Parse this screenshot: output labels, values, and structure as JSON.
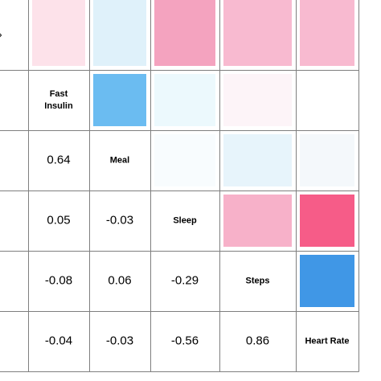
{
  "chart_data": {
    "type": "heatmap",
    "variables": [
      "Fast Insulin",
      "Meal",
      "Sleep",
      "Steps",
      "Heart Rate"
    ],
    "row_labels": [
      [
        "Fast",
        "Insulin"
      ],
      [
        "Meal"
      ],
      [
        "Sleep"
      ],
      [
        "Steps"
      ],
      [
        "Heart Rate"
      ]
    ],
    "top_row_fills": [
      "#fde2ea",
      "#dff1fa",
      "#f4a3bf",
      "#f8bad0",
      "#f8bad0"
    ],
    "upper_triangle_fills": [
      [
        "#6bbcf1",
        "#ecf9fd",
        "#fdf4f8",
        "#ffffff"
      ],
      [
        "#f8fcfe",
        "#e7f4fb",
        "#f4f8fb"
      ],
      [
        "#f7b1c9",
        "#f65c88"
      ],
      [
        "#4097e6"
      ]
    ],
    "lower_triangle_values": [
      [
        "0.64"
      ],
      [
        "0.05",
        "-0.03"
      ],
      [
        "-0.08",
        "0.06",
        "-0.29"
      ],
      [
        "-0.04",
        "-0.03",
        "-0.56",
        "0.86"
      ]
    ],
    "partial_left_glyph": "›",
    "grid_color": "#7f7f7f"
  }
}
